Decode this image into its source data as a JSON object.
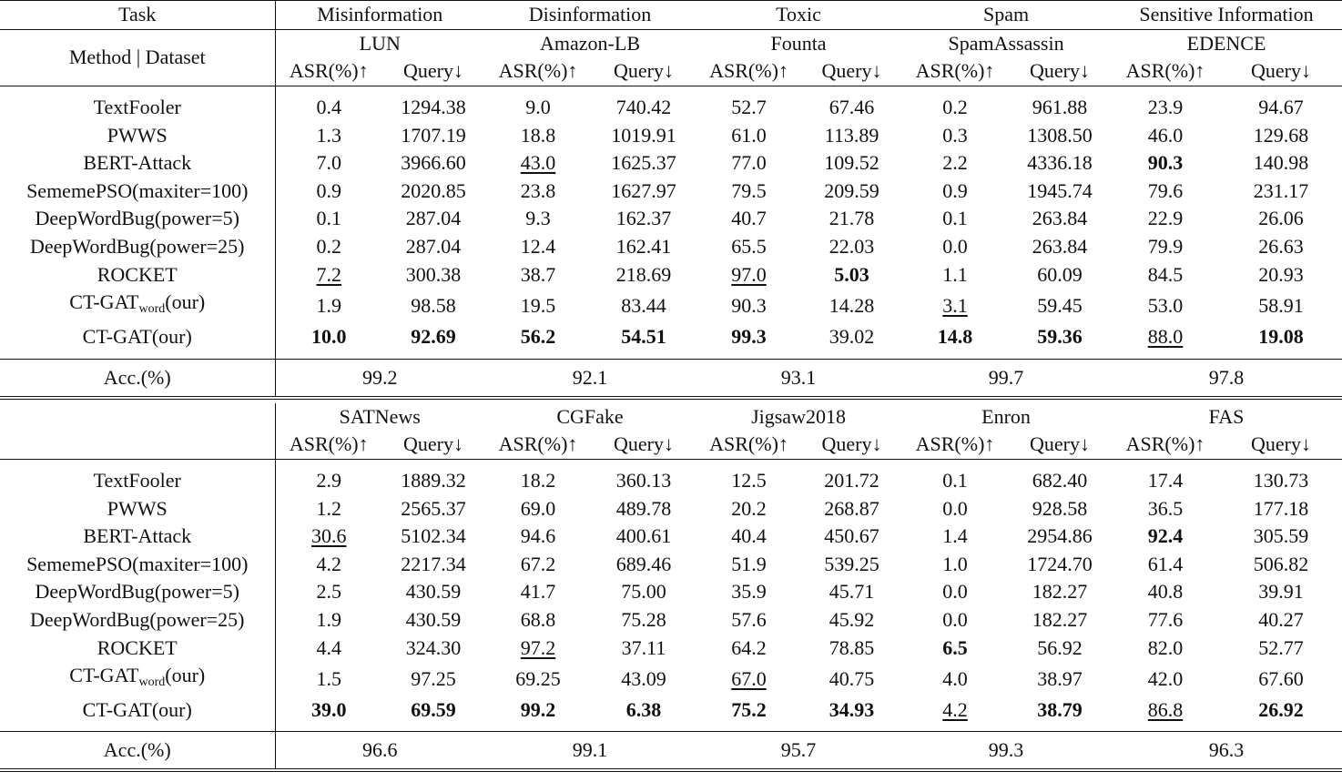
{
  "header": {
    "task_label": "Task",
    "method_dataset_label": "Method | Dataset",
    "asr_label": "ASR(%)↑",
    "query_label": "Query↓",
    "acc_label": "Acc.(%)"
  },
  "methods": [
    {
      "name": "TextFooler"
    },
    {
      "name": "PWWS"
    },
    {
      "name": "BERT-Attack"
    },
    {
      "name": "SememePSO(maxiter=100)"
    },
    {
      "name": "DeepWordBug(power=5)"
    },
    {
      "name": "DeepWordBug(power=25)"
    },
    {
      "name": "ROCKET"
    },
    {
      "name": "CT-GAT",
      "sub": "word",
      "suffix": "(our)"
    },
    {
      "name": "CT-GAT(our)"
    }
  ],
  "blocks": [
    {
      "tasks": [
        "Misinformation",
        "Disinformation",
        "Toxic",
        "Spam",
        "Sensitive Information"
      ],
      "datasets": [
        "LUN",
        "Amazon-LB",
        "Founta",
        "SpamAssassin",
        "EDENCE"
      ],
      "rows": [
        {
          "values": [
            "0.4",
            "1294.38",
            "9.0",
            "740.42",
            "52.7",
            "67.46",
            "0.2",
            "961.88",
            "23.9",
            "94.67"
          ],
          "bold": [],
          "underline": []
        },
        {
          "values": [
            "1.3",
            "1707.19",
            "18.8",
            "1019.91",
            "61.0",
            "113.89",
            "0.3",
            "1308.50",
            "46.0",
            "129.68"
          ],
          "bold": [],
          "underline": []
        },
        {
          "values": [
            "7.0",
            "3966.60",
            "43.0",
            "1625.37",
            "77.0",
            "109.52",
            "2.2",
            "4336.18",
            "90.3",
            "140.98"
          ],
          "bold": [
            8
          ],
          "underline": [
            2
          ]
        },
        {
          "values": [
            "0.9",
            "2020.85",
            "23.8",
            "1627.97",
            "79.5",
            "209.59",
            "0.9",
            "1945.74",
            "79.6",
            "231.17"
          ],
          "bold": [],
          "underline": []
        },
        {
          "values": [
            "0.1",
            "287.04",
            "9.3",
            "162.37",
            "40.7",
            "21.78",
            "0.1",
            "263.84",
            "22.9",
            "26.06"
          ],
          "bold": [],
          "underline": []
        },
        {
          "values": [
            "0.2",
            "287.04",
            "12.4",
            "162.41",
            "65.5",
            "22.03",
            "0.0",
            "263.84",
            "79.9",
            "26.63"
          ],
          "bold": [],
          "underline": []
        },
        {
          "values": [
            "7.2",
            "300.38",
            "38.7",
            "218.69",
            "97.0",
            "5.03",
            "1.1",
            "60.09",
            "84.5",
            "20.93"
          ],
          "bold": [
            5
          ],
          "underline": [
            0,
            4
          ]
        },
        {
          "values": [
            "1.9",
            "98.58",
            "19.5",
            "83.44",
            "90.3",
            "14.28",
            "3.1",
            "59.45",
            "53.0",
            "58.91"
          ],
          "bold": [],
          "underline": [
            6
          ]
        },
        {
          "values": [
            "10.0",
            "92.69",
            "56.2",
            "54.51",
            "99.3",
            "39.02",
            "14.8",
            "59.36",
            "88.0",
            "19.08"
          ],
          "bold": [
            0,
            1,
            2,
            3,
            4,
            6,
            7,
            9
          ],
          "underline": [
            8
          ]
        }
      ],
      "acc": [
        "99.2",
        "92.1",
        "93.1",
        "99.7",
        "97.8"
      ]
    },
    {
      "tasks": [],
      "datasets": [
        "SATNews",
        "CGFake",
        "Jigsaw2018",
        "Enron",
        "FAS"
      ],
      "rows": [
        {
          "values": [
            "2.9",
            "1889.32",
            "18.2",
            "360.13",
            "12.5",
            "201.72",
            "0.1",
            "682.40",
            "17.4",
            "130.73"
          ],
          "bold": [],
          "underline": []
        },
        {
          "values": [
            "1.2",
            "2565.37",
            "69.0",
            "489.78",
            "20.2",
            "268.87",
            "0.0",
            "928.58",
            "36.5",
            "177.18"
          ],
          "bold": [],
          "underline": []
        },
        {
          "values": [
            "30.6",
            "5102.34",
            "94.6",
            "400.61",
            "40.4",
            "450.67",
            "1.4",
            "2954.86",
            "92.4",
            "305.59"
          ],
          "bold": [
            8
          ],
          "underline": [
            0
          ]
        },
        {
          "values": [
            "4.2",
            "2217.34",
            "67.2",
            "689.46",
            "51.9",
            "539.25",
            "1.0",
            "1724.70",
            "61.4",
            "506.82"
          ],
          "bold": [],
          "underline": []
        },
        {
          "values": [
            "2.5",
            "430.59",
            "41.7",
            "75.00",
            "35.9",
            "45.71",
            "0.0",
            "182.27",
            "40.8",
            "39.91"
          ],
          "bold": [],
          "underline": []
        },
        {
          "values": [
            "1.9",
            "430.59",
            "68.8",
            "75.28",
            "57.6",
            "45.92",
            "0.0",
            "182.27",
            "77.6",
            "40.27"
          ],
          "bold": [],
          "underline": []
        },
        {
          "values": [
            "4.4",
            "324.30",
            "97.2",
            "37.11",
            "64.2",
            "78.85",
            "6.5",
            "56.92",
            "82.0",
            "52.77"
          ],
          "bold": [
            6
          ],
          "underline": [
            2
          ]
        },
        {
          "values": [
            "1.5",
            "97.25",
            "69.25",
            "43.09",
            "67.0",
            "40.75",
            "4.0",
            "38.97",
            "42.0",
            "67.60"
          ],
          "bold": [],
          "underline": [
            4
          ]
        },
        {
          "values": [
            "39.0",
            "69.59",
            "99.2",
            "6.38",
            "75.2",
            "34.93",
            "4.2",
            "38.79",
            "86.8",
            "26.92"
          ],
          "bold": [
            0,
            1,
            2,
            3,
            4,
            5,
            7,
            9
          ],
          "underline": [
            6,
            8
          ]
        }
      ],
      "acc": [
        "96.6",
        "99.1",
        "95.7",
        "99.3",
        "96.3"
      ]
    }
  ]
}
